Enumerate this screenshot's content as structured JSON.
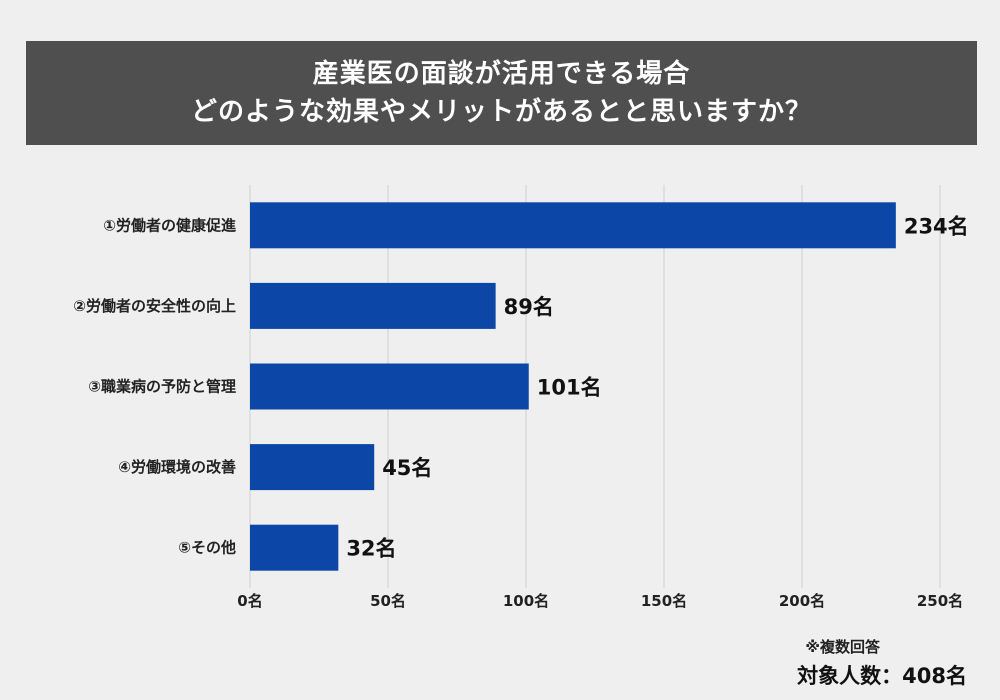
{
  "title": {
    "line1": "産業医の面談が活用できる場合",
    "line2": "どのような効果やメリットがあるとと思いますか？"
  },
  "chart_data": {
    "type": "bar",
    "orientation": "horizontal",
    "categories": [
      "①労働者の健康促進",
      "②労働者の安全性の向上",
      "③職業病の予防と管理",
      "④労働環境の改善",
      "⑤その他"
    ],
    "values": [
      234,
      89,
      101,
      45,
      32
    ],
    "value_labels": [
      "234名",
      "89名",
      "101名",
      "45名",
      "32名"
    ],
    "xlim": [
      0,
      250
    ],
    "xticks": [
      0,
      50,
      100,
      150,
      200,
      250
    ],
    "xtick_labels": [
      "0名",
      "50名",
      "100名",
      "150名",
      "200名",
      "250名"
    ],
    "grid": true,
    "bar_color": "#0c47a8"
  },
  "notes": {
    "multiple_answers": "※複数回答",
    "sample_size": "対象人数：408名"
  }
}
